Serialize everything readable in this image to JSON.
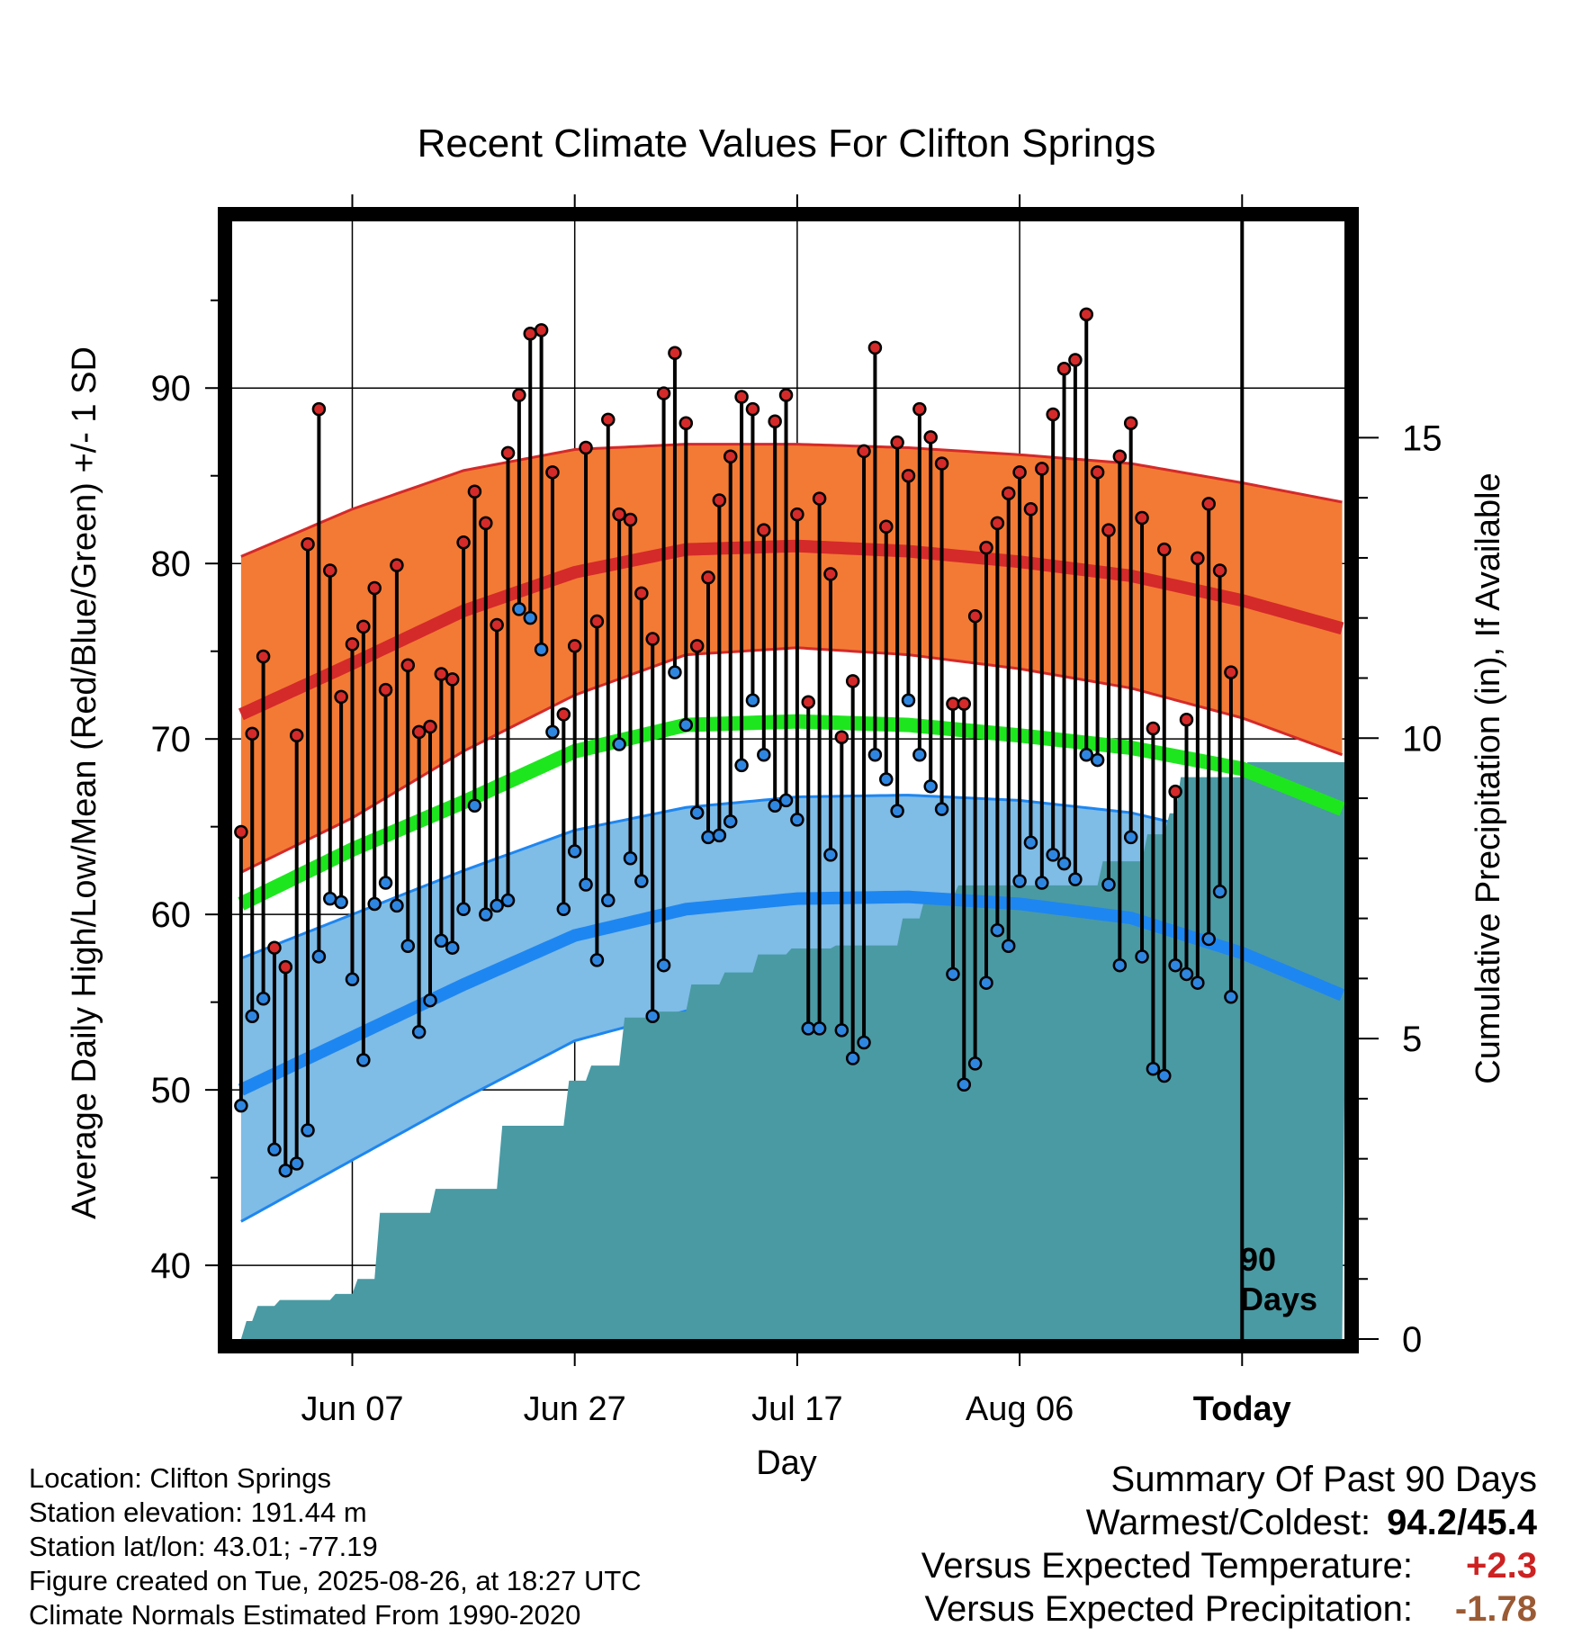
{
  "chart_data": {
    "type": "line",
    "title": "Recent Climate Values For Clifton Springs",
    "xlabel": "Day",
    "ylabel": "Average Daily High/Low/Mean (Red/Blue/Green) +/- 1 SD",
    "y2label": "Cumulative Precipitation (in), If Available",
    "x_ticks": [
      "Jun 07",
      "Jun 27",
      "Jul 17",
      "Aug 06",
      "Today"
    ],
    "x_tick_days": [
      10,
      30,
      50,
      70,
      90
    ],
    "x_range": [
      -0.8,
      99.2
    ],
    "ylim": [
      35.8,
      99.5
    ],
    "y_ticks": [
      40,
      50,
      60,
      70,
      80,
      90
    ],
    "y2lim": [
      0,
      18.6
    ],
    "y2_ticks": [
      0,
      5,
      10,
      15
    ],
    "grid": true,
    "today_marker_day": 90,
    "today_label": [
      "90",
      "Days"
    ],
    "normals": {
      "day": [
        0,
        10,
        20,
        30,
        40,
        50,
        60,
        70,
        80,
        90,
        99
      ],
      "high_mean": [
        71.4,
        74.3,
        77.3,
        79.5,
        80.8,
        81.0,
        80.7,
        80.1,
        79.3,
        77.9,
        76.3
      ],
      "high_sd": [
        9.0,
        8.8,
        8.0,
        7.0,
        6.0,
        5.8,
        5.9,
        6.1,
        6.4,
        6.7,
        7.2
      ],
      "mean": [
        60.6,
        63.7,
        66.4,
        69.3,
        70.8,
        71.0,
        70.8,
        70.2,
        69.5,
        68.3,
        66.0
      ],
      "low_mean": [
        50.0,
        53.0,
        56.0,
        58.8,
        60.3,
        60.9,
        61.0,
        60.6,
        59.8,
        57.8,
        55.4
      ],
      "low_sd": [
        7.5,
        7.0,
        6.5,
        6.0,
        5.8,
        5.8,
        5.8,
        5.9,
        6.0,
        6.5,
        6.8
      ]
    },
    "series": [
      {
        "name": "High",
        "color": "#d42a2a",
        "values": [
          64.7,
          70.3,
          74.7,
          58.1,
          57.0,
          70.2,
          81.1,
          88.8,
          79.6,
          72.4,
          75.4,
          76.4,
          78.6,
          72.8,
          79.9,
          74.2,
          70.4,
          70.7,
          73.7,
          73.4,
          81.2,
          84.1,
          82.3,
          76.5,
          86.3,
          89.6,
          93.1,
          93.3,
          85.2,
          71.4,
          75.3,
          86.6,
          76.7,
          88.2,
          82.8,
          82.5,
          78.3,
          75.7,
          89.7,
          92.0,
          88.0,
          75.3,
          79.2,
          83.6,
          86.1,
          89.5,
          88.8,
          81.9,
          88.1,
          89.6,
          82.8,
          72.1,
          83.7,
          79.4,
          70.1,
          73.3,
          86.4,
          92.3,
          82.1,
          86.9,
          85.0,
          88.8,
          87.2,
          85.7,
          72.0,
          72.0,
          77.0,
          80.9,
          82.3,
          84.0,
          85.2,
          83.1,
          85.4,
          88.5,
          91.1,
          91.6,
          94.2,
          85.2,
          81.9,
          86.1,
          88.0,
          82.6,
          70.6,
          80.8,
          67.0,
          71.1,
          80.3,
          83.4,
          79.6,
          73.8
        ]
      },
      {
        "name": "Low",
        "color": "#2f86e0",
        "values": [
          49.1,
          54.2,
          55.2,
          46.6,
          45.4,
          45.8,
          47.7,
          57.6,
          60.9,
          60.7,
          56.3,
          51.7,
          60.6,
          61.8,
          60.5,
          58.2,
          53.3,
          55.1,
          58.5,
          58.1,
          60.3,
          66.2,
          60.0,
          60.5,
          60.8,
          77.4,
          76.9,
          75.1,
          70.4,
          60.3,
          63.6,
          61.7,
          57.4,
          60.8,
          69.7,
          63.2,
          61.9,
          54.2,
          57.1,
          73.8,
          70.8,
          65.8,
          64.4,
          64.5,
          65.3,
          68.5,
          72.2,
          69.1,
          66.2,
          66.5,
          65.4,
          53.5,
          53.5,
          63.4,
          53.4,
          51.8,
          52.7,
          69.1,
          67.7,
          65.9,
          72.2,
          69.1,
          67.3,
          66.0,
          56.6,
          50.3,
          51.5,
          56.1,
          59.1,
          58.2,
          61.9,
          64.1,
          61.8,
          63.4,
          62.9,
          62.0,
          69.1,
          68.8,
          61.7,
          57.1,
          64.4,
          57.6,
          51.2,
          50.8,
          57.1,
          56.6,
          56.1,
          58.6,
          61.3,
          55.3
        ]
      }
    ],
    "precip": {
      "day": [
        0,
        1,
        3,
        8,
        10,
        12,
        17,
        23,
        29,
        31,
        34,
        37,
        40,
        43,
        46,
        49,
        53,
        59,
        61,
        64,
        77,
        81,
        83,
        84,
        90,
        99
      ],
      "cumulative": [
        0.3,
        0.55,
        0.65,
        0.75,
        1.0,
        2.1,
        2.5,
        3.55,
        4.3,
        4.55,
        5.35,
        5.45,
        5.9,
        6.1,
        6.4,
        6.5,
        6.55,
        7.0,
        7.35,
        7.55,
        7.95,
        8.4,
        8.75,
        9.35,
        9.6,
        9.6
      ]
    }
  },
  "info": {
    "location": "Location: Clifton Springs",
    "elevation": "Station elevation: 191.44 m",
    "latlon": "Station lat/lon: 43.01; -77.19",
    "created": "Figure created on Tue, 2025-08-26, at 18:27 UTC",
    "normals": "Climate Normals Estimated From 1990-2020"
  },
  "summary": {
    "heading": "Summary Of Past 90 Days",
    "warm_cold_label": "Warmest/Coldest:",
    "warm_cold_value": "94.2/45.4",
    "temp_label": "Versus Expected Temperature:",
    "temp_value": "+2.3",
    "temp_color": "#cc2222",
    "precip_label": "Versus Expected Precipitation:",
    "precip_value": "-1.78",
    "precip_color": "#9a5a34"
  },
  "colors": {
    "high_band": "#f37a34",
    "high_line": "#d42a2a",
    "low_band": "#7fbce6",
    "low_line": "#1e86f0",
    "mean_line": "#1ee61e",
    "precip_fill": "#4a9aa4"
  }
}
